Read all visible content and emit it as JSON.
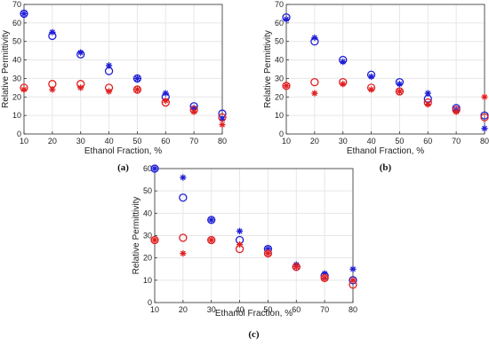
{
  "chart_data": [
    {
      "type": "scatter",
      "panel_label": "(a)",
      "xlabel": "Ethanol Fraction, %",
      "ylabel": "Relative Permittivity",
      "xlim": [
        10,
        80
      ],
      "ylim": [
        0,
        70
      ],
      "xticks": [
        "10",
        "20",
        "30",
        "40",
        "50",
        "60",
        "70",
        "80"
      ],
      "yticks": [
        "0",
        "10",
        "20",
        "30",
        "40",
        "50",
        "60",
        "70"
      ],
      "grid": true,
      "x": [
        10,
        20,
        30,
        40,
        50,
        60,
        70,
        80
      ],
      "series": [
        {
          "color": "#1f1fd6",
          "marker": "circle",
          "values": [
            65,
            53,
            43,
            34,
            30,
            20,
            15,
            11
          ]
        },
        {
          "color": "#1f1fd6",
          "marker": "asterisk",
          "values": [
            65,
            55,
            44,
            37,
            30,
            22,
            14,
            8
          ]
        },
        {
          "color": "#e02020",
          "marker": "circle",
          "values": [
            25,
            27,
            27,
            25,
            24,
            17,
            13,
            9
          ]
        },
        {
          "color": "#e02020",
          "marker": "asterisk",
          "values": [
            24,
            24,
            25,
            23,
            24,
            18,
            12,
            5
          ]
        }
      ]
    },
    {
      "type": "scatter",
      "panel_label": "(b)",
      "xlabel": "Ethanol Fraction, %",
      "ylabel": "Relative Permittivity",
      "xlim": [
        10,
        80
      ],
      "ylim": [
        0,
        70
      ],
      "xticks": [
        "10",
        "20",
        "30",
        "40",
        "50",
        "60",
        "70",
        "80"
      ],
      "yticks": [
        "0",
        "10",
        "20",
        "30",
        "40",
        "50",
        "60",
        "70"
      ],
      "grid": true,
      "x": [
        10,
        20,
        30,
        40,
        50,
        60,
        70,
        80
      ],
      "series": [
        {
          "color": "#1f1fd6",
          "marker": "circle",
          "values": [
            63,
            50,
            40,
            32,
            28,
            19,
            14,
            10
          ]
        },
        {
          "color": "#1f1fd6",
          "marker": "asterisk",
          "values": [
            62,
            52,
            39,
            31,
            27,
            22,
            13,
            3
          ]
        },
        {
          "color": "#e02020",
          "marker": "circle",
          "values": [
            26,
            28,
            28,
            25,
            23,
            17,
            13,
            9
          ]
        },
        {
          "color": "#e02020",
          "marker": "asterisk",
          "values": [
            26,
            22,
            27,
            24,
            23,
            16,
            12,
            20
          ]
        }
      ]
    },
    {
      "type": "scatter",
      "panel_label": "(c)",
      "xlabel": "Ethanol Fraction, %",
      "ylabel": "Relative Permittivity",
      "xlim": [
        10,
        80
      ],
      "ylim": [
        0,
        60
      ],
      "xticks": [
        "10",
        "20",
        "30",
        "40",
        "50",
        "60",
        "70",
        "80"
      ],
      "yticks": [
        "0",
        "10",
        "20",
        "30",
        "40",
        "50",
        "60"
      ],
      "grid": true,
      "x": [
        10,
        20,
        30,
        40,
        50,
        60,
        70,
        80
      ],
      "series": [
        {
          "color": "#1f1fd6",
          "marker": "circle",
          "values": [
            60,
            47,
            37,
            28,
            24,
            16,
            12,
            10
          ]
        },
        {
          "color": "#1f1fd6",
          "marker": "asterisk",
          "values": [
            60,
            56,
            37,
            32,
            24,
            17,
            13,
            15
          ]
        },
        {
          "color": "#e02020",
          "marker": "circle",
          "values": [
            28,
            29,
            28,
            24,
            22,
            16,
            11,
            8
          ]
        },
        {
          "color": "#e02020",
          "marker": "asterisk",
          "values": [
            28,
            22,
            28,
            26,
            22,
            16,
            11,
            10
          ]
        }
      ]
    }
  ]
}
